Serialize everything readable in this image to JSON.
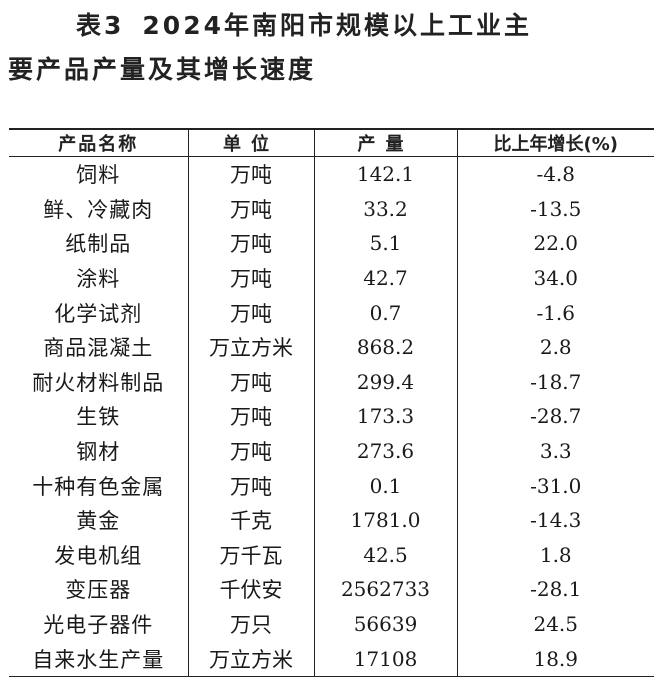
{
  "title": {
    "label": "表3",
    "line1": "2024年南阳市规模以上工业主",
    "line2": "要产品产量及其增长速度"
  },
  "table": {
    "headers": [
      "产品名称",
      "单位",
      "产量",
      "比上年增长(%)"
    ],
    "rows": [
      {
        "name": "饲料",
        "unit": "万吨",
        "output": "142.1",
        "growth": "-4.8"
      },
      {
        "name": "鲜、冷藏肉",
        "unit": "万吨",
        "output": "33.2",
        "growth": "-13.5"
      },
      {
        "name": "纸制品",
        "unit": "万吨",
        "output": "5.1",
        "growth": "22.0"
      },
      {
        "name": "涂料",
        "unit": "万吨",
        "output": "42.7",
        "growth": "34.0"
      },
      {
        "name": "化学试剂",
        "unit": "万吨",
        "output": "0.7",
        "growth": "-1.6"
      },
      {
        "name": "商品混凝土",
        "unit": "万立方米",
        "output": "868.2",
        "growth": "2.8"
      },
      {
        "name": "耐火材料制品",
        "unit": "万吨",
        "output": "299.4",
        "growth": "-18.7"
      },
      {
        "name": "生铁",
        "unit": "万吨",
        "output": "173.3",
        "growth": "-28.7"
      },
      {
        "name": "钢材",
        "unit": "万吨",
        "output": "273.6",
        "growth": "3.3"
      },
      {
        "name": "十种有色金属",
        "unit": "万吨",
        "output": "0.1",
        "growth": "-31.0"
      },
      {
        "name": "黄金",
        "unit": "千克",
        "output": "1781.0",
        "growth": "-14.3"
      },
      {
        "name": "发电机组",
        "unit": "万千瓦",
        "output": "42.5",
        "growth": "1.8"
      },
      {
        "name": "变压器",
        "unit": "千伏安",
        "output": "2562733",
        "growth": "-28.1"
      },
      {
        "name": "光电子器件",
        "unit": "万只",
        "output": "56639",
        "growth": "24.5"
      },
      {
        "name": "自来水生产量",
        "unit": "万立方米",
        "output": "17108",
        "growth": "18.9"
      }
    ]
  }
}
